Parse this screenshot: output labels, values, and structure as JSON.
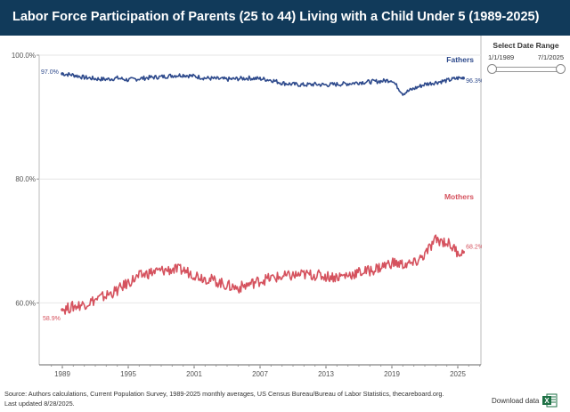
{
  "header": {
    "title": "Labor Force Participation of Parents (25 to 44) Living with a Child Under 5 (1989-2025)"
  },
  "filter": {
    "title": "Select Date Range",
    "start_date": "1/1/1989",
    "end_date": "7/1/2025"
  },
  "footer": {
    "source": "Source: Authors calculations, Current Population Survey, 1989-2025 monthly averages, US Census Bureau/Bureau of Labor Statistics, thecareboard.org.",
    "updated": "Last updated 8/28/2025.",
    "download_label": "Download data",
    "download_icon": "excel-icon"
  },
  "colors": {
    "fathers": "#2e4a8c",
    "mothers": "#d5525e",
    "header_bg": "#113a5a"
  },
  "chart_data": {
    "type": "line",
    "title": "Labor Force Participation of Parents (25 to 44) Living with a Child Under 5 (1989-2025)",
    "xlabel": "",
    "ylabel": "",
    "x_range": [
      1988,
      2027
    ],
    "ylim": [
      50,
      100
    ],
    "y_ticks": [
      100,
      80,
      60
    ],
    "y_tick_labels": [
      "100.0%",
      "80.0%",
      "60.0%"
    ],
    "x_ticks": [
      1989,
      1995,
      2001,
      2007,
      2013,
      2019,
      2025
    ],
    "x_tick_labels": [
      "1989",
      "1995",
      "2001",
      "2007",
      "2013",
      "2019",
      "2025"
    ],
    "series": [
      {
        "name": "Fathers",
        "label": "Fathers",
        "start_label": "97.0%",
        "end_label": "96.3%",
        "x": [
          1989,
          1990,
          1991,
          1992,
          1993,
          1994,
          1995,
          1996,
          1997,
          1998,
          1999,
          2000,
          2001,
          2002,
          2003,
          2004,
          2005,
          2006,
          2007,
          2008,
          2009,
          2010,
          2011,
          2012,
          2013,
          2014,
          2015,
          2016,
          2017,
          2018,
          2019,
          2020,
          2021,
          2022,
          2023,
          2024,
          2025
        ],
        "values": [
          97.0,
          96.8,
          96.4,
          96.2,
          96.1,
          96.3,
          96.0,
          96.2,
          96.4,
          96.5,
          96.7,
          96.8,
          96.6,
          96.3,
          96.2,
          96.1,
          96.2,
          96.3,
          96.2,
          96.0,
          95.5,
          95.3,
          95.2,
          95.3,
          95.2,
          95.3,
          95.4,
          95.6,
          95.7,
          95.8,
          96.0,
          93.8,
          94.6,
          95.3,
          95.6,
          95.9,
          96.3
        ]
      },
      {
        "name": "Mothers",
        "label": "Mothers",
        "start_label": "58.9%",
        "end_label": "68.2%",
        "x": [
          1989,
          1990,
          1991,
          1992,
          1993,
          1994,
          1995,
          1996,
          1997,
          1998,
          1999,
          2000,
          2001,
          2002,
          2003,
          2004,
          2005,
          2006,
          2007,
          2008,
          2009,
          2010,
          2011,
          2012,
          2013,
          2014,
          2015,
          2016,
          2017,
          2018,
          2019,
          2020,
          2021,
          2022,
          2023,
          2024,
          2025
        ],
        "values": [
          58.9,
          59.4,
          59.8,
          60.5,
          61.2,
          62.0,
          63.3,
          64.3,
          64.9,
          65.2,
          65.4,
          65.3,
          64.6,
          64.0,
          63.5,
          62.8,
          62.4,
          63.0,
          63.6,
          64.0,
          64.2,
          64.4,
          64.6,
          64.5,
          64.3,
          64.2,
          64.5,
          64.9,
          65.2,
          65.8,
          66.5,
          66.2,
          66.3,
          67.8,
          70.2,
          69.8,
          68.2
        ]
      }
    ]
  }
}
